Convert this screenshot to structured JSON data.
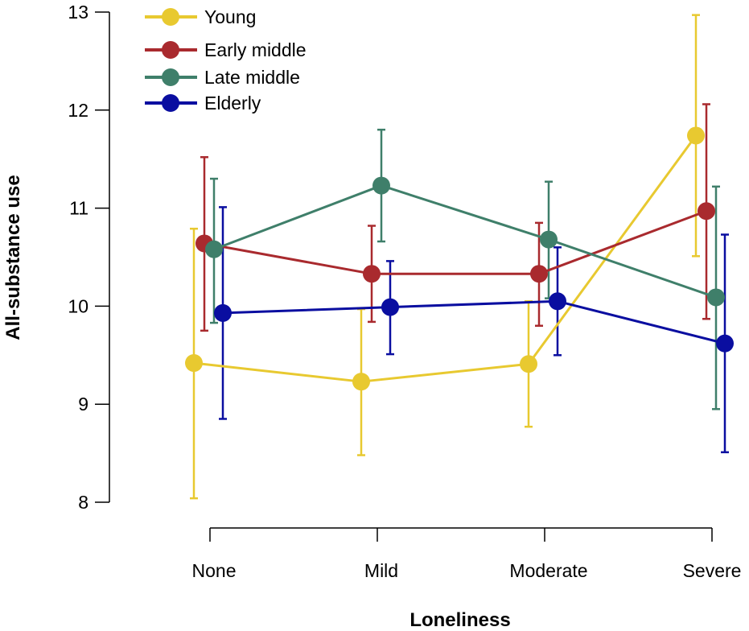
{
  "chart_data": {
    "type": "line",
    "title": "",
    "xlabel": "Loneliness",
    "ylabel": "All-substance use",
    "categories": [
      "None",
      "Mild",
      "Moderate",
      "Severe"
    ],
    "ylim": [
      8,
      13
    ],
    "yticks": [
      "8",
      "9",
      "10",
      "11",
      "12",
      "13"
    ],
    "grid": false,
    "legend_position": "top-left",
    "series": [
      {
        "name": "Young",
        "color": "#E8C930",
        "values": [
          9.42,
          9.23,
          9.41,
          11.74
        ],
        "err_low": [
          8.04,
          8.48,
          8.77,
          10.51
        ],
        "err_high": [
          10.79,
          9.97,
          10.05,
          12.97
        ]
      },
      {
        "name": "Early middle",
        "color": "#A92A2E",
        "values": [
          10.64,
          10.33,
          10.33,
          10.97
        ],
        "err_low": [
          9.75,
          9.84,
          9.8,
          9.87
        ],
        "err_high": [
          11.52,
          10.82,
          10.85,
          12.06
        ]
      },
      {
        "name": "Late middle",
        "color": "#3F7F6A",
        "values": [
          10.58,
          11.23,
          10.68,
          10.09
        ],
        "err_low": [
          9.83,
          10.66,
          10.08,
          8.95
        ],
        "err_high": [
          11.3,
          11.8,
          11.27,
          11.22
        ]
      },
      {
        "name": "Elderly",
        "color": "#0A0EA0",
        "values": [
          9.93,
          9.99,
          10.05,
          9.62
        ],
        "err_low": [
          8.85,
          9.51,
          9.5,
          8.51
        ],
        "err_high": [
          11.01,
          10.46,
          10.6,
          10.73
        ]
      }
    ]
  }
}
